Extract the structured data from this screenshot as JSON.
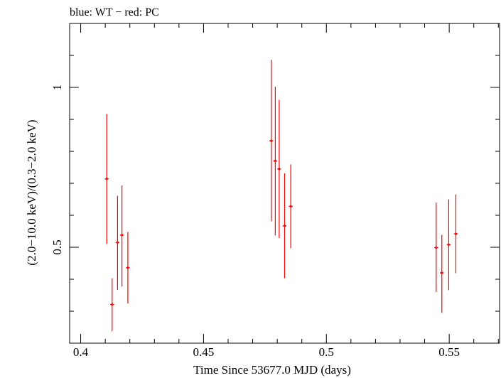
{
  "chart_data": {
    "type": "scatter",
    "title": "blue: WT − red: PC",
    "xlabel": "Time Since 53677.0 MJD (days)",
    "ylabel": "(2.0−10.0 keV)/(0.3−2.0 keV)",
    "xlim": [
      0.3955,
      0.5705
    ],
    "ylim": [
      0.2,
      1.2
    ],
    "x_ticks": [
      {
        "value": 0.4,
        "label": "0.4"
      },
      {
        "value": 0.45,
        "label": "0.45"
      },
      {
        "value": 0.5,
        "label": "0.5"
      },
      {
        "value": 0.55,
        "label": "0.55"
      }
    ],
    "y_ticks": [
      {
        "value": 0.5,
        "label": "0.5"
      },
      {
        "value": 1,
        "label": "1"
      }
    ],
    "series": [
      {
        "name": "PC",
        "color": "#ff0000",
        "points": [
          {
            "x": 0.4106,
            "y": 0.714,
            "xerr": 0.0008,
            "ylo": 0.51,
            "yhi": 0.917
          },
          {
            "x": 0.4128,
            "y": 0.321,
            "xerr": 0.0008,
            "ylo": 0.237,
            "yhi": 0.403
          },
          {
            "x": 0.415,
            "y": 0.515,
            "xerr": 0.0008,
            "ylo": 0.367,
            "yhi": 0.661
          },
          {
            "x": 0.4168,
            "y": 0.538,
            "xerr": 0.0008,
            "ylo": 0.377,
            "yhi": 0.693
          },
          {
            "x": 0.4192,
            "y": 0.436,
            "xerr": 0.0008,
            "ylo": 0.324,
            "yhi": 0.548
          },
          {
            "x": 0.4776,
            "y": 0.833,
            "xerr": 0.0008,
            "ylo": 0.581,
            "yhi": 1.086
          },
          {
            "x": 0.4792,
            "y": 0.77,
            "xerr": 0.0008,
            "ylo": 0.537,
            "yhi": 1.002
          },
          {
            "x": 0.4808,
            "y": 0.745,
            "xerr": 0.0008,
            "ylo": 0.529,
            "yhi": 0.961
          },
          {
            "x": 0.483,
            "y": 0.567,
            "xerr": 0.0008,
            "ylo": 0.403,
            "yhi": 0.731
          },
          {
            "x": 0.4855,
            "y": 0.628,
            "xerr": 0.0008,
            "ylo": 0.497,
            "yhi": 0.759
          },
          {
            "x": 0.5447,
            "y": 0.499,
            "xerr": 0.0008,
            "ylo": 0.36,
            "yhi": 0.64
          },
          {
            "x": 0.547,
            "y": 0.42,
            "xerr": 0.0008,
            "ylo": 0.295,
            "yhi": 0.539
          },
          {
            "x": 0.5498,
            "y": 0.508,
            "xerr": 0.0008,
            "ylo": 0.366,
            "yhi": 0.65
          },
          {
            "x": 0.5527,
            "y": 0.542,
            "xerr": 0.0008,
            "ylo": 0.419,
            "yhi": 0.665
          }
        ]
      }
    ]
  }
}
